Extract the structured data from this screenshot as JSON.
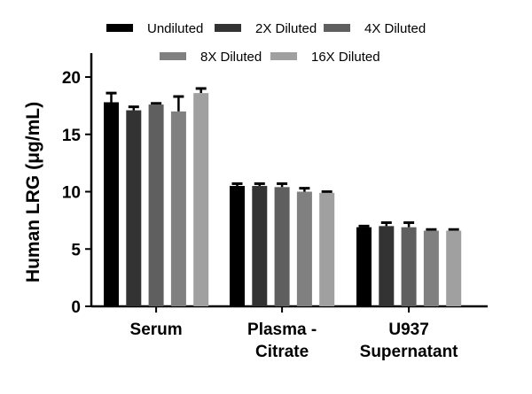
{
  "chart_data": {
    "type": "bar",
    "title": "",
    "xlabel": "",
    "ylabel": "Human LRG (μg/mL)",
    "ylim": [
      0,
      20
    ],
    "yticks": [
      0,
      5,
      10,
      15,
      20
    ],
    "categories": [
      [
        "Serum"
      ],
      [
        "Plasma -",
        "Citrate"
      ],
      [
        "U937",
        "Supernatant"
      ]
    ],
    "legend_position": "top",
    "grid": false,
    "series": [
      {
        "name": "Undiluted",
        "color": "#000000",
        "values": [
          17.8,
          10.5,
          6.9
        ],
        "errors": [
          0.8,
          0.2,
          0.1
        ]
      },
      {
        "name": "2X Diluted",
        "color": "#333333",
        "values": [
          17.1,
          10.5,
          7.0
        ],
        "errors": [
          0.3,
          0.2,
          0.3
        ]
      },
      {
        "name": "4X Diluted",
        "color": "#5f5f5f",
        "values": [
          17.6,
          10.4,
          6.9
        ],
        "errors": [
          0.1,
          0.3,
          0.4
        ]
      },
      {
        "name": "8X Diluted",
        "color": "#808080",
        "values": [
          17.0,
          10.0,
          6.6
        ],
        "errors": [
          1.3,
          0.3,
          0.1
        ]
      },
      {
        "name": "16X Diluted",
        "color": "#a0a0a0",
        "values": [
          18.6,
          9.9,
          6.6
        ],
        "errors": [
          0.4,
          0.1,
          0.1
        ]
      }
    ]
  }
}
